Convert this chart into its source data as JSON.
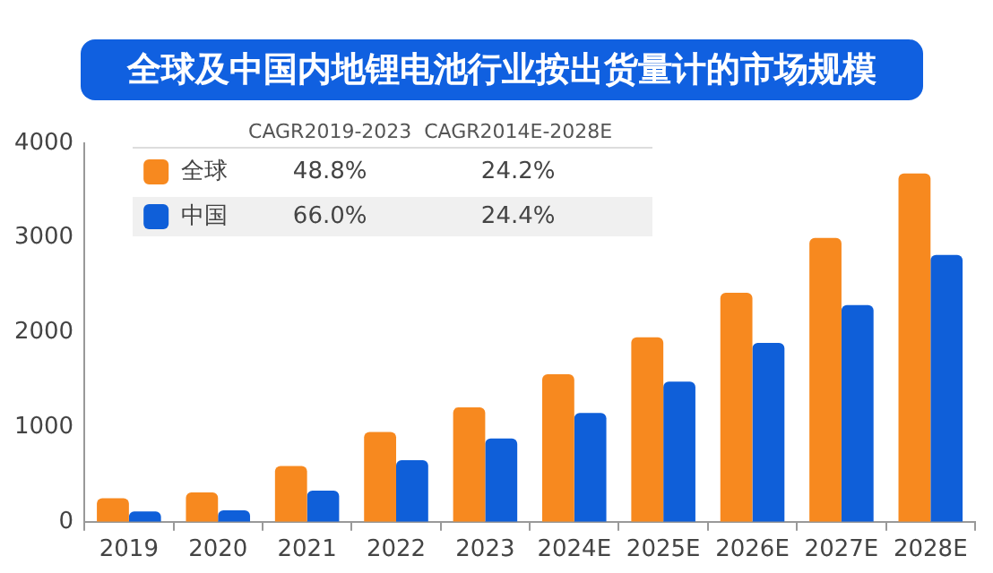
{
  "chart_data": {
    "type": "bar",
    "title": "全球及中国内地锂电池行业按出货量计的市场规模",
    "categories": [
      "2019",
      "2020",
      "2021",
      "2022",
      "2023",
      "2024E",
      "2025E",
      "2026E",
      "2027E",
      "2028E"
    ],
    "series": [
      {
        "name": "全球",
        "color": "#f7891f",
        "values": [
          250,
          310,
          590,
          950,
          1210,
          1560,
          1950,
          2420,
          3000,
          3680
        ]
      },
      {
        "name": "中国",
        "color": "#0f5fd9",
        "values": [
          110,
          120,
          330,
          650,
          880,
          1150,
          1480,
          1890,
          2290,
          2820
        ]
      }
    ],
    "ylim": [
      0,
      4000
    ],
    "yticks": [
      0,
      1000,
      2000,
      3000,
      4000
    ],
    "grid": false,
    "legend": "top left",
    "annotations": [
      "CAGR2019-2023",
      "CAGR2014E-2028E",
      "48.8%",
      "24.2%",
      "66.0%",
      "24.4%"
    ]
  }
}
